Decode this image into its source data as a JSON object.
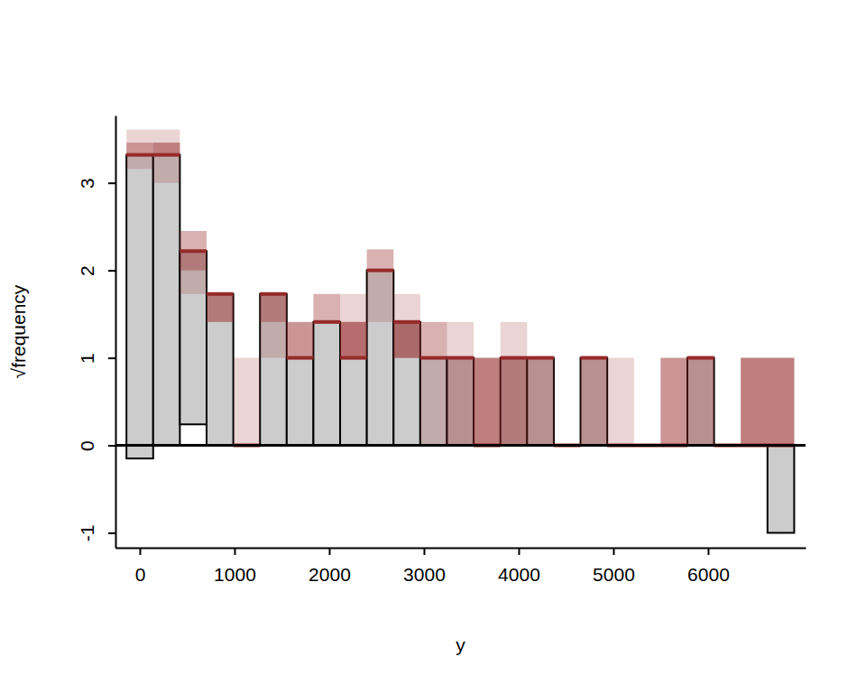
{
  "chart_data": {
    "type": "rootogram",
    "x_label": "y",
    "y_label": "√frequency",
    "color": "#962a2a",
    "bins": [
      -141,
      141,
      423,
      705,
      987,
      1269,
      1551,
      1833,
      2115,
      2397,
      2679,
      2961,
      3243,
      3525,
      3807,
      4089,
      4371,
      4653,
      4935,
      5217,
      5499,
      5781,
      6063,
      6345,
      6627,
      6909
    ],
    "observed": [
      3.32,
      3.32,
      2.22,
      1.73,
      0,
      1.73,
      1,
      1.41,
      1,
      2,
      1.41,
      1,
      1,
      0,
      1,
      1,
      0,
      1,
      0,
      0,
      0,
      1,
      0,
      0,
      0
    ],
    "expected": [
      3.47,
      3.32,
      1.98,
      1.73,
      0,
      1.73,
      1,
      1.41,
      1,
      2,
      1.41,
      1,
      1,
      0,
      1,
      1,
      0,
      1,
      0,
      0,
      0,
      1,
      0,
      0,
      1
    ],
    "simulated": [
      [
        3.61,
        3.46,
        3.46,
        3.16,
        3.32
      ],
      [
        3.61,
        3.46,
        3.46,
        3.46,
        3
      ],
      [
        2.45,
        2.45,
        2,
        2,
        1.73
      ],
      [
        1.41,
        1.41,
        1.41,
        1.73,
        1.73
      ],
      [
        1,
        0,
        0,
        0,
        0
      ],
      [
        1.41,
        1.41,
        1,
        1.73,
        1.73
      ],
      [
        1.41,
        1.41,
        1.41,
        1,
        1
      ],
      [
        1.73,
        1.73,
        1.41,
        1.41,
        1.41
      ],
      [
        1.73,
        1.41,
        1.41,
        1.41,
        1.41
      ],
      [
        2.24,
        2.24,
        1.41,
        2,
        2
      ],
      [
        1.73,
        1,
        1,
        1,
        1
      ],
      [
        1.41,
        1.41,
        0,
        1,
        1
      ],
      [
        1.41,
        0,
        0,
        1,
        1
      ],
      [
        1,
        1,
        1,
        1,
        0
      ],
      [
        1.41,
        0,
        0,
        0,
        1
      ],
      [
        0,
        0,
        1,
        1,
        1
      ],
      [
        0,
        0,
        0,
        0,
        0
      ],
      [
        0,
        0,
        1,
        1,
        1
      ],
      [
        1,
        0,
        0,
        0,
        0
      ],
      [
        0,
        0,
        0,
        0,
        0
      ],
      [
        1,
        1,
        1,
        0,
        0
      ],
      [
        0,
        0,
        1,
        1,
        1
      ],
      [
        0,
        0,
        0,
        0,
        0
      ],
      [
        1,
        1,
        1,
        1,
        0
      ],
      [
        1,
        1,
        1,
        1,
        0
      ]
    ],
    "xlim": [
      -257,
      7029
    ],
    "ylim": [
      -1.17,
      3.77
    ],
    "xticks": [
      0,
      1000,
      2000,
      3000,
      4000,
      5000,
      6000
    ],
    "yticks": [
      -1,
      0,
      1,
      2,
      3
    ]
  }
}
